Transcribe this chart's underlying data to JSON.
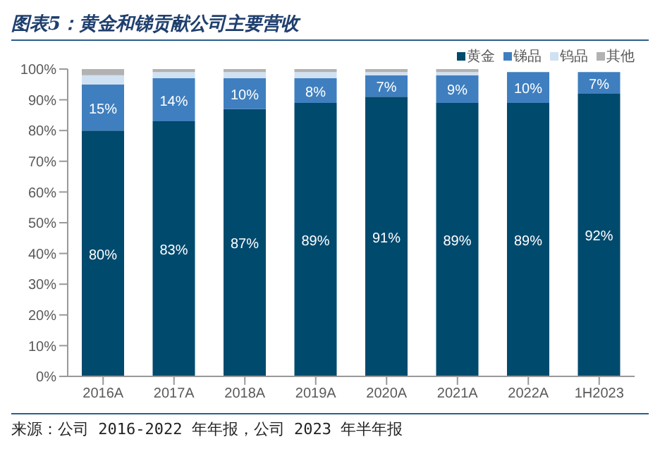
{
  "chart_data": {
    "type": "bar",
    "title": "图表5：黄金和锑贡献公司主要营收",
    "annotations": [
      "来源：公司 2016-2022 年年报，公司 2023 年半年报"
    ],
    "categories": [
      "2016A",
      "2017A",
      "2018A",
      "2019A",
      "2020A",
      "2021A",
      "2022A",
      "1H2023"
    ],
    "stacked": true,
    "series": [
      {
        "name": "黄金",
        "color": "#004a6e",
        "values": [
          80,
          83,
          87,
          89,
          91,
          89,
          89,
          92
        ],
        "value_labels": [
          "80%",
          "83%",
          "87%",
          "89%",
          "91%",
          "89%",
          "89%",
          "92%"
        ]
      },
      {
        "name": "锑品",
        "color": "#3f7fbf",
        "values": [
          15,
          14,
          10,
          8,
          7,
          9,
          10,
          7
        ],
        "value_labels": [
          "15%",
          "14%",
          "10%",
          "8%",
          "7%",
          "9%",
          "10%",
          "7%"
        ]
      },
      {
        "name": "钨品",
        "color": "#cfe1f2",
        "values": [
          3,
          2,
          2,
          2,
          1,
          1,
          null,
          null
        ]
      },
      {
        "name": "其他",
        "color": "#b2b2b2",
        "values": [
          2,
          1,
          1,
          1,
          1,
          1,
          null,
          null
        ]
      }
    ],
    "ylim": [
      0,
      100
    ],
    "yticks": [
      {
        "value": 0,
        "label": "0%"
      },
      {
        "value": 10,
        "label": "10%"
      },
      {
        "value": 20,
        "label": "20%"
      },
      {
        "value": 30,
        "label": "30%"
      },
      {
        "value": 40,
        "label": "40%"
      },
      {
        "value": 50,
        "label": "50%"
      },
      {
        "value": 60,
        "label": "60%"
      },
      {
        "value": 70,
        "label": "70%"
      },
      {
        "value": 80,
        "label": "80%"
      },
      {
        "value": 90,
        "label": "90%"
      },
      {
        "value": 100,
        "label": "100%"
      }
    ],
    "grid": false,
    "legend": "top right"
  }
}
